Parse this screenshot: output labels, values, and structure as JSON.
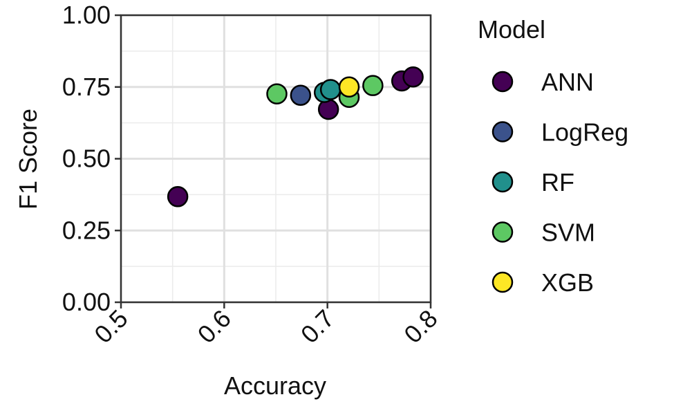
{
  "chart_data": {
    "type": "scatter",
    "xlabel": "Accuracy",
    "ylabel": "F1 Score",
    "xlim": [
      0.5,
      0.8
    ],
    "ylim": [
      0.0,
      1.0
    ],
    "x_ticks": [
      "0.5",
      "0.6",
      "0.7",
      "0.8"
    ],
    "y_ticks": [
      "0.00",
      "0.25",
      "0.50",
      "0.75",
      "1.00"
    ],
    "grid": true,
    "legend": {
      "title": "Model",
      "position": "right"
    },
    "series": [
      {
        "name": "ANN",
        "color": "#440154",
        "points": [
          {
            "x": 0.555,
            "y": 0.368
          },
          {
            "x": 0.701,
            "y": 0.672
          },
          {
            "x": 0.772,
            "y": 0.771
          },
          {
            "x": 0.783,
            "y": 0.785
          }
        ]
      },
      {
        "name": "LogReg",
        "color": "#3B528B",
        "points": [
          {
            "x": 0.674,
            "y": 0.721
          }
        ]
      },
      {
        "name": "RF",
        "color": "#21908C",
        "points": [
          {
            "x": 0.697,
            "y": 0.731
          },
          {
            "x": 0.703,
            "y": 0.741
          }
        ]
      },
      {
        "name": "SVM",
        "color": "#5DC863",
        "points": [
          {
            "x": 0.651,
            "y": 0.726
          },
          {
            "x": 0.721,
            "y": 0.714
          },
          {
            "x": 0.744,
            "y": 0.755
          }
        ]
      },
      {
        "name": "XGB",
        "color": "#FDE725",
        "points": [
          {
            "x": 0.721,
            "y": 0.75
          }
        ]
      }
    ]
  }
}
